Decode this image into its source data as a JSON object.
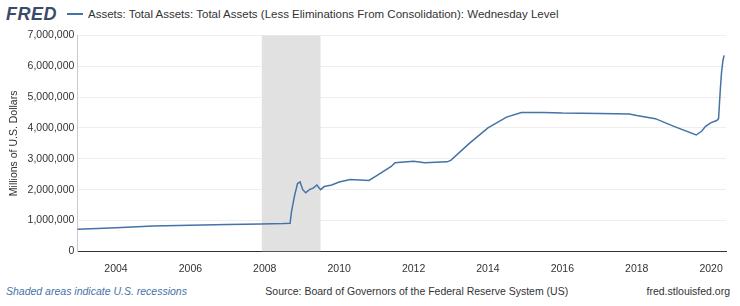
{
  "chart_data": {
    "type": "line",
    "brand": "FRED",
    "y_label": "Millions of U.S. Dollars",
    "notes": [
      "Shaded areas indicate U.S. recessions"
    ],
    "source": "Source: Board of Governors of the Federal Reserve System (US)",
    "site": "fred.stlouisfed.org",
    "legend": "top-left",
    "grid": true,
    "x": [
      2002.96,
      2003.5,
      2004.0,
      2005.0,
      2006.0,
      2007.0,
      2007.9,
      2008.5,
      2008.68,
      2008.72,
      2008.8,
      2008.88,
      2008.95,
      2009.02,
      2009.1,
      2009.2,
      2009.3,
      2009.4,
      2009.5,
      2009.6,
      2009.8,
      2010.0,
      2010.3,
      2010.8,
      2011.0,
      2011.4,
      2011.5,
      2012.0,
      2012.3,
      2012.9,
      2013.0,
      2013.5,
      2014.0,
      2014.5,
      2014.9,
      2015.5,
      2016.0,
      2017.0,
      2017.8,
      2018.0,
      2018.5,
      2019.0,
      2019.6,
      2019.75,
      2019.85,
      2020.0,
      2020.15,
      2020.2,
      2020.22,
      2020.25,
      2020.28,
      2020.32,
      2020.35
    ],
    "series": [
      {
        "name": "Assets: Total Assets: Total Assets (Less Eliminations From Consolidation): Wednesday Level",
        "color": "#4572a7",
        "values": [
          720000,
          740000,
          770000,
          820000,
          850000,
          870000,
          890000,
          900000,
          910000,
          1300000,
          1800000,
          2200000,
          2250000,
          2000000,
          1900000,
          2000000,
          2050000,
          2150000,
          2000000,
          2100000,
          2150000,
          2250000,
          2330000,
          2300000,
          2450000,
          2750000,
          2870000,
          2920000,
          2870000,
          2900000,
          2950000,
          3500000,
          4000000,
          4350000,
          4500000,
          4500000,
          4480000,
          4470000,
          4450000,
          4400000,
          4300000,
          4050000,
          3770000,
          3900000,
          4050000,
          4170000,
          4240000,
          4300000,
          4700000,
          5300000,
          5800000,
          6200000,
          6350000
        ]
      }
    ],
    "recessions": [
      [
        2007.92,
        2009.5
      ]
    ],
    "xlim": [
      2002.96,
      2020.4
    ],
    "xticks": [
      2004,
      2006,
      2008,
      2010,
      2012,
      2014,
      2016,
      2018,
      2020
    ],
    "ylim": [
      0,
      7000000
    ],
    "yticks": [
      0,
      {
        "value": 1000000,
        "label": "1,000,000"
      },
      {
        "value": 2000000,
        "label": "2,000,000"
      },
      {
        "value": 3000000,
        "label": "3,000,000"
      },
      {
        "value": 4000000,
        "label": "4,000,000"
      },
      {
        "value": 5000000,
        "label": "5,000,000"
      },
      {
        "value": 6000000,
        "label": "6,000,000"
      },
      {
        "value": 7000000,
        "label": "7,000,000"
      }
    ]
  }
}
